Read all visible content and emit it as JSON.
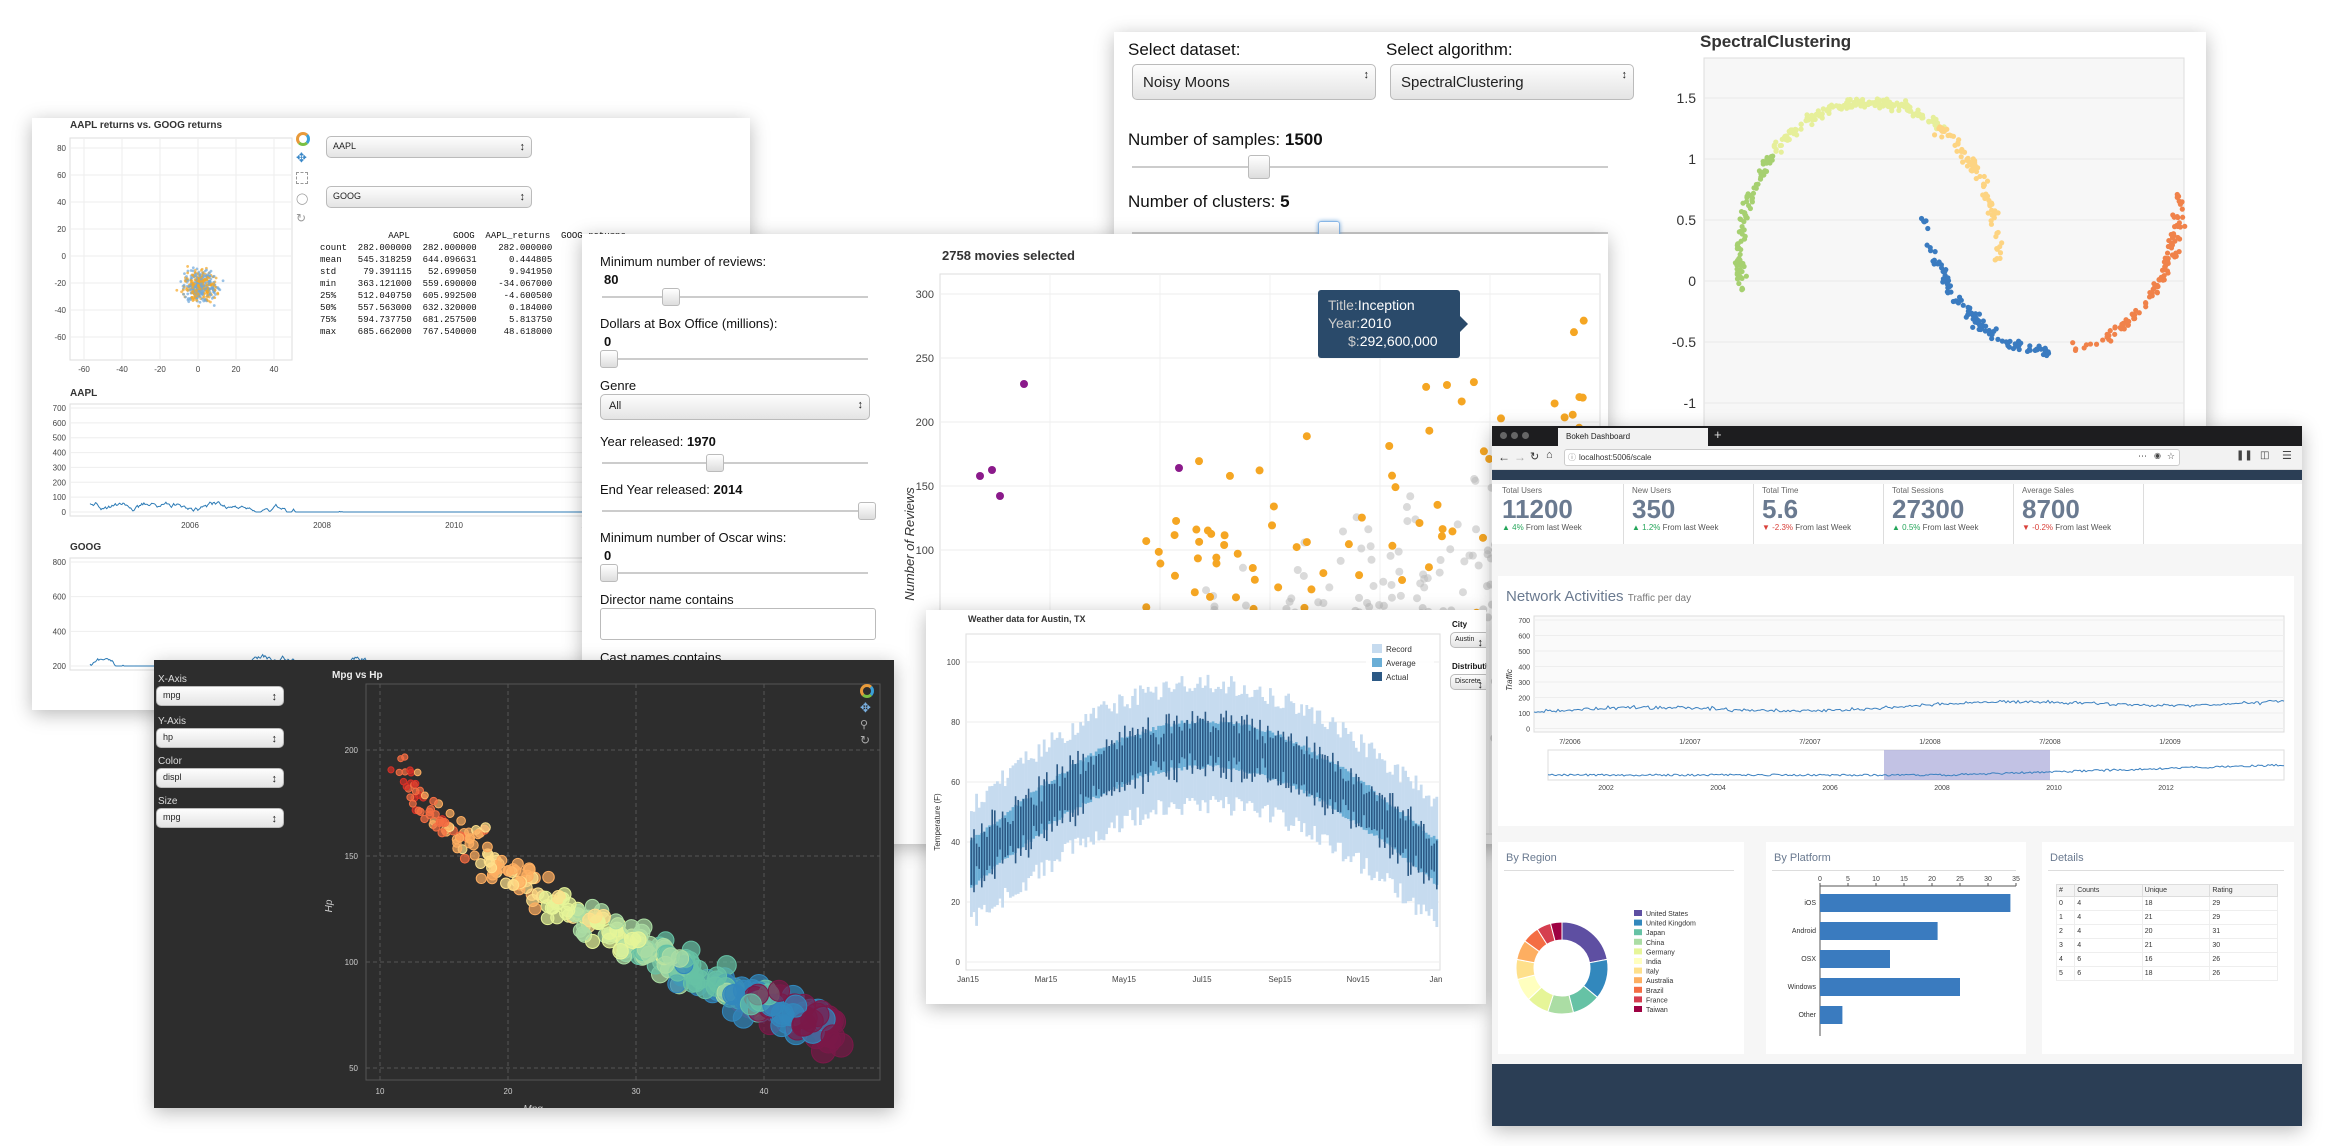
{
  "stocks": {
    "scatter_title": "AAPL returns vs. GOOG returns",
    "select1": "AAPL",
    "select2": "GOOG",
    "stats_header": "             AAPL        GOOG  AAPL_returns  GOOG_returns",
    "stats_rows": [
      "count  282.000000  282.000000    282.000000",
      "mean   545.318259  644.096631      0.444805",
      "std     79.391115   52.699050      9.941950",
      "min    363.121000  559.690000    -34.067000",
      "25%    512.040750  605.992500     -4.600500",
      "50%    557.563000  632.320000      0.184000",
      "75%    594.737750  681.257500      5.813750",
      "max    685.662000  767.540000     48.618000"
    ],
    "aapl_title": "AAPL",
    "goog_title": "GOOG",
    "scatter_yticks": [
      "80",
      "60",
      "40",
      "20",
      "0",
      "-20",
      "-40",
      "-60"
    ],
    "scatter_xticks": [
      "-60",
      "-40",
      "-20",
      "0",
      "20",
      "40"
    ],
    "aapl_yticks": [
      "700",
      "600",
      "500",
      "400",
      "300",
      "200",
      "100",
      "0"
    ],
    "goog_yticks": [
      "800",
      "600",
      "400",
      "200"
    ],
    "time_xticks": [
      "2006",
      "2008",
      "2010",
      "20"
    ]
  },
  "movies": {
    "label_reviews": "Minimum number of reviews:",
    "value_reviews": "80",
    "label_boxoffice": "Dollars at Box Office (millions):",
    "value_boxoffice": "0",
    "label_genre": "Genre",
    "genre_value": "All",
    "label_year": "Year released:",
    "value_year": "1970",
    "label_endyear": "End Year released:",
    "value_endyear": "2014",
    "label_oscar": "Minimum number of Oscar wins:",
    "value_oscar": "0",
    "label_director": "Director name contains",
    "label_cast": "Cast names contains",
    "plot_title": "2758 movies selected",
    "ylabel": "Number of Reviews",
    "yticks": [
      "300",
      "250",
      "200",
      "150",
      "100"
    ],
    "tooltip": {
      "title_key": "Title:",
      "title_val": "Inception",
      "year_key": "Year:",
      "year_val": "2010",
      "money_key": "$:",
      "money_val": "292,600,000"
    }
  },
  "clustering": {
    "label_dataset": "Select dataset:",
    "dataset_value": "Noisy Moons",
    "label_algorithm": "Select algorithm:",
    "algorithm_value": "SpectralClustering",
    "label_samples": "Number of samples:",
    "value_samples": "1500",
    "label_clusters": "Number of clusters:",
    "value_clusters": "5",
    "plot_title": "SpectralClustering",
    "yticks": [
      "1.5",
      "1",
      "0.5",
      "0",
      "-0.5",
      "-1"
    ],
    "colors": [
      "#e6ef9a",
      "#a6d070",
      "#3a7bc0",
      "#fdd482",
      "#f0824a"
    ]
  },
  "mpg": {
    "title": "Mpg vs Hp",
    "label_x": "X-Axis",
    "x_value": "mpg",
    "label_y": "Y-Axis",
    "y_value": "hp",
    "label_color": "Color",
    "color_value": "displ",
    "label_size": "Size",
    "size_value": "mpg",
    "xlabel": "Mpg",
    "ylabel": "Hp",
    "xticks": [
      "10",
      "20",
      "30",
      "40"
    ],
    "yticks": [
      "200",
      "150",
      "100",
      "50"
    ]
  },
  "weather": {
    "title": "Weather data for Austin, TX",
    "legend": [
      "Record",
      "Average",
      "Actual"
    ],
    "legend_colors": [
      "#c6dbef",
      "#6aaed6",
      "#2c5985"
    ],
    "ylabel": "Temperature (F)",
    "yticks": [
      "100",
      "80",
      "60",
      "40",
      "20",
      "0"
    ],
    "xticks": [
      "Jan15",
      "Mar15",
      "May15",
      "Jul15",
      "Sep15",
      "Nov15",
      "Jan"
    ],
    "label_city": "City",
    "city_value": "Austin",
    "label_distribution": "Distribution",
    "distribution_value": "Discrete"
  },
  "dashboard": {
    "tab_title": "Bokeh Dashboard",
    "new_tab": "+",
    "url": "localhost:5006/scale",
    "stats": [
      {
        "label": "Total Users",
        "value": "11200",
        "delta": "4%",
        "suffix": "From last Week",
        "up": true
      },
      {
        "label": "New Users",
        "value": "350",
        "delta": "1.2%",
        "suffix": "From last Week",
        "up": true
      },
      {
        "label": "Total Time",
        "value": "5.6",
        "delta": "-2.3%",
        "suffix": "From last Week",
        "up": false
      },
      {
        "label": "Total Sessions",
        "value": "27300",
        "delta": "0.5%",
        "suffix": "From last Week",
        "up": true
      },
      {
        "label": "Average Sales",
        "value": "8700",
        "delta": "-0.2%",
        "suffix": "From last Week",
        "up": false
      }
    ],
    "network_title": "Network Activities",
    "network_sub": "Traffic per day",
    "traffic_label": "Traffic",
    "traffic_yticks": [
      "700",
      "600",
      "500",
      "400",
      "300",
      "200",
      "100",
      "0"
    ],
    "traffic_xticks": [
      "7/2006",
      "1/2007",
      "7/2007",
      "1/2008",
      "7/2008",
      "1/2009"
    ],
    "range_xticks": [
      "2002",
      "2004",
      "2006",
      "2008",
      "2010",
      "2012"
    ],
    "by_region": "By Region",
    "regions": [
      "United States",
      "United Kingdom",
      "Japan",
      "China",
      "Germany",
      "India",
      "Italy",
      "Australia",
      "Brazil",
      "France",
      "Taiwan"
    ],
    "region_colors": [
      "#5e4fa2",
      "#3288bd",
      "#66c2a5",
      "#abdda4",
      "#e6f598",
      "#ffffbf",
      "#fee08b",
      "#fdae61",
      "#f46d43",
      "#d53e4f",
      "#9e0142"
    ],
    "by_platform": "By Platform",
    "platform_xticks": [
      "0",
      "5",
      "10",
      "15",
      "20",
      "25",
      "30",
      "35"
    ],
    "details": "Details",
    "details_headers": [
      "#",
      "Counts",
      "Unique",
      "Rating"
    ],
    "details_rows": [
      [
        "0",
        "4",
        "18",
        "29"
      ],
      [
        "1",
        "4",
        "21",
        "29"
      ],
      [
        "2",
        "4",
        "20",
        "31"
      ],
      [
        "3",
        "4",
        "21",
        "30"
      ],
      [
        "4",
        "6",
        "16",
        "26"
      ],
      [
        "5",
        "6",
        "18",
        "26"
      ]
    ]
  },
  "chart_data": [
    {
      "type": "bar",
      "title": "By Platform",
      "categories": [
        "iOS",
        "Android",
        "OSX",
        "Windows",
        "Other"
      ],
      "values": [
        34,
        21,
        12.5,
        25,
        4
      ],
      "xlim": [
        0,
        35
      ]
    },
    {
      "type": "pie",
      "title": "By Region",
      "categories": [
        "United States",
        "United Kingdom",
        "Japan",
        "China",
        "Germany",
        "India",
        "Italy",
        "Australia",
        "Brazil",
        "France",
        "Taiwan"
      ],
      "values": [
        22,
        14,
        10,
        9,
        8,
        8,
        7,
        7,
        6,
        5,
        4
      ]
    }
  ]
}
